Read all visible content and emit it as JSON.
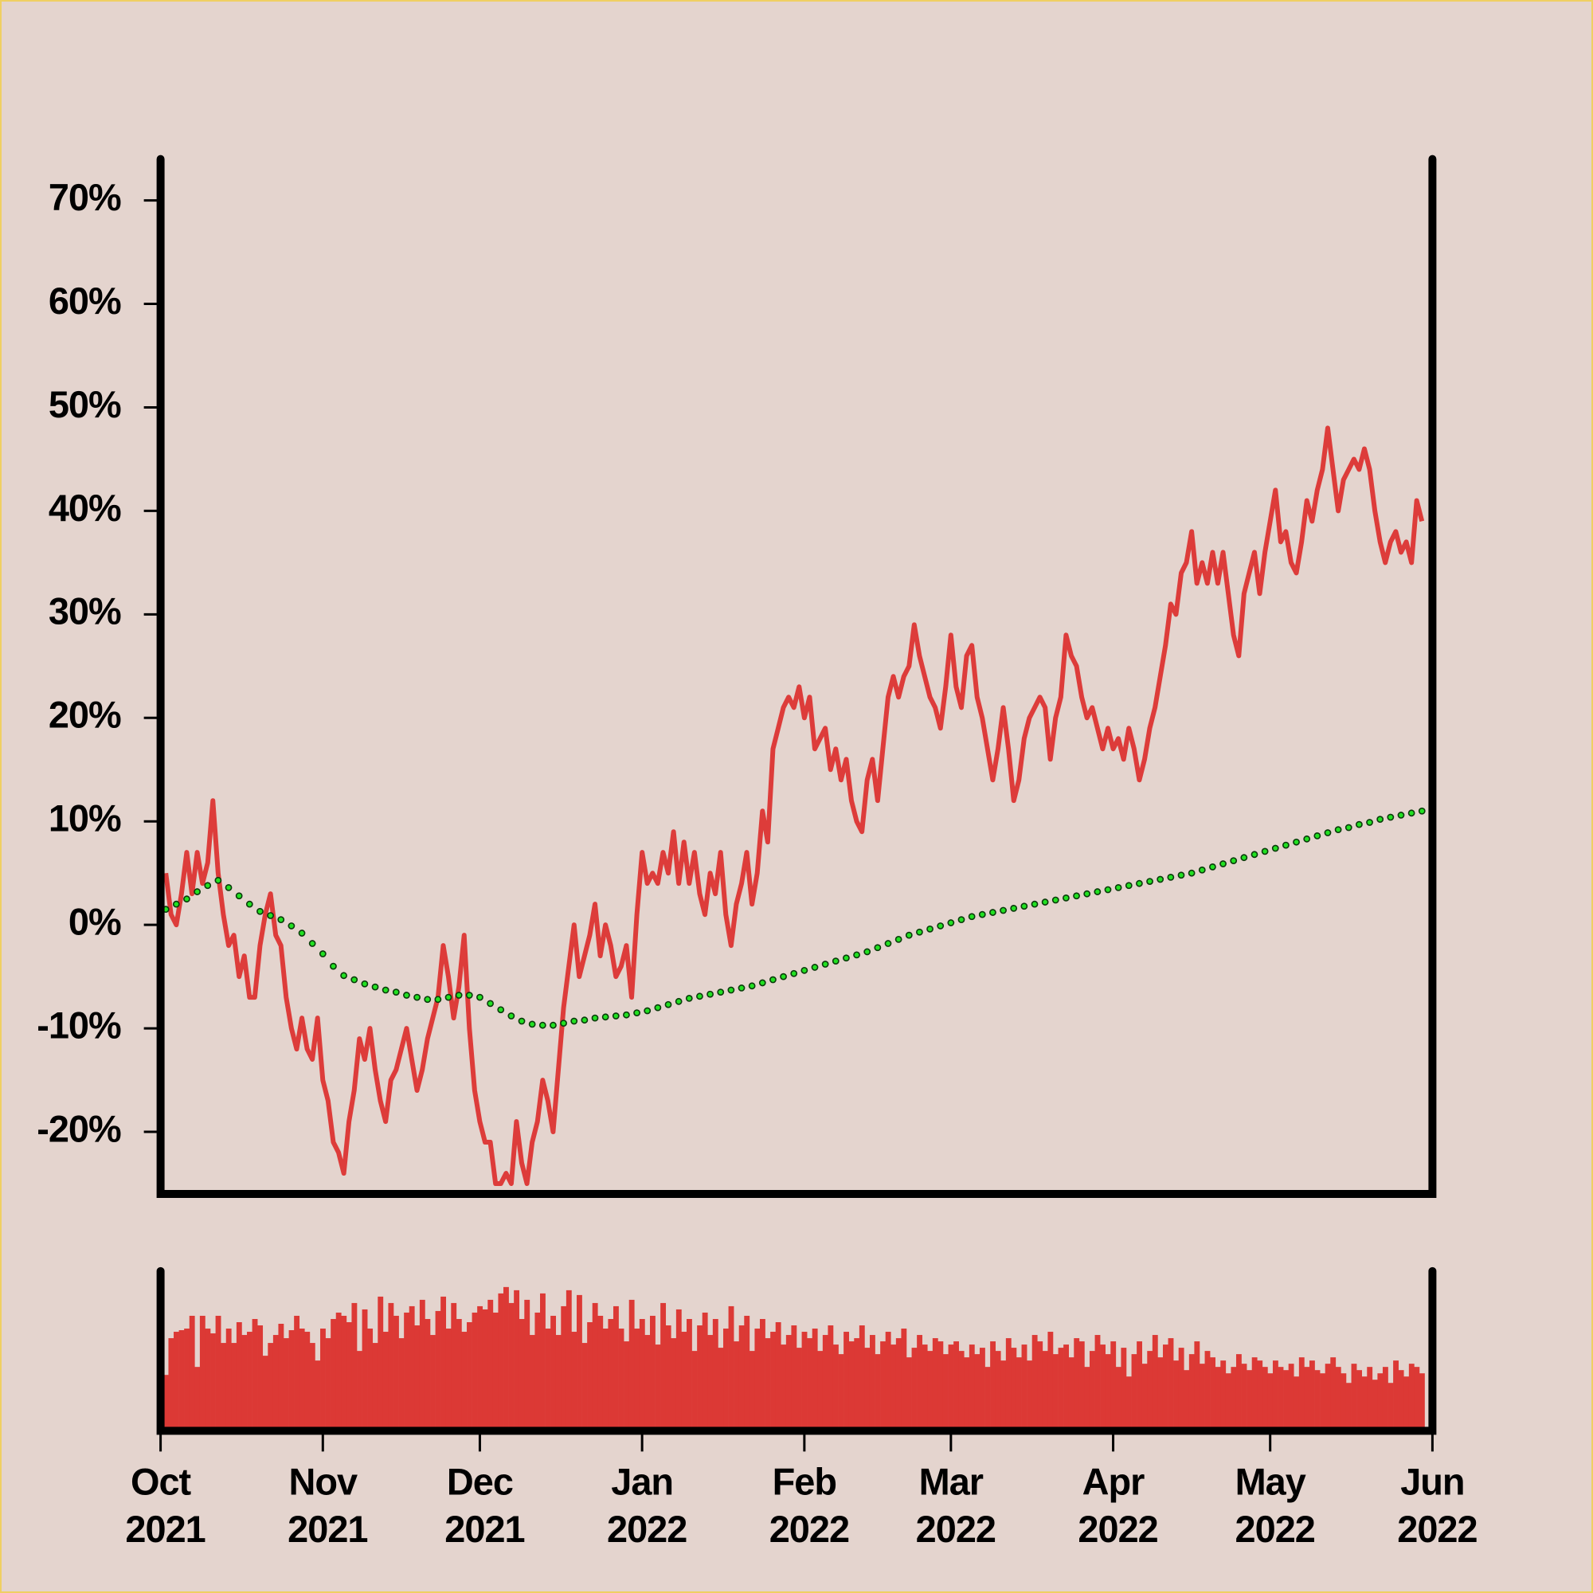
{
  "chart_data": [
    {
      "type": "line",
      "x": [
        1,
        2,
        3,
        4,
        5,
        6,
        7,
        8,
        9,
        10,
        11,
        12,
        13,
        14,
        15,
        16,
        17,
        18,
        19,
        20,
        21,
        22,
        23,
        24,
        25,
        26,
        27,
        28,
        29,
        30,
        31,
        32,
        33,
        34,
        35,
        36,
        37,
        38,
        39,
        40,
        41,
        42,
        43,
        44,
        45,
        46,
        47,
        48,
        49,
        50,
        51,
        52,
        53,
        54,
        55,
        56,
        57,
        58,
        59,
        60,
        61,
        62,
        63,
        64,
        65,
        66,
        67,
        68,
        69,
        70,
        71,
        72,
        73,
        74,
        75,
        76,
        77,
        78,
        79,
        80,
        81,
        82,
        83,
        84,
        85,
        86,
        87,
        88,
        89,
        90,
        91,
        92,
        93,
        94,
        95,
        96,
        97,
        98,
        99,
        100,
        101,
        102,
        103,
        104,
        105,
        106,
        107,
        108,
        109,
        110,
        111,
        112,
        113,
        114,
        115,
        116,
        117,
        118,
        119,
        120,
        121,
        122,
        123,
        124,
        125,
        126,
        127,
        128,
        129,
        130,
        131,
        132,
        133,
        134,
        135,
        136,
        137,
        138,
        139,
        140,
        141,
        142,
        143,
        144,
        145,
        146,
        147,
        148,
        149,
        150,
        151,
        152,
        153,
        154,
        155,
        156,
        157,
        158,
        159,
        160,
        161,
        162,
        163,
        164,
        165,
        166,
        167,
        168,
        169,
        170,
        171,
        172,
        173,
        174,
        175,
        176,
        177,
        178,
        179,
        180,
        181,
        182,
        183,
        184,
        185,
        186,
        187,
        188,
        189,
        190,
        191,
        192,
        193,
        194,
        195,
        196,
        197,
        198,
        199,
        200,
        201,
        202,
        203,
        204,
        205,
        206,
        207,
        208,
        209,
        210,
        211,
        212,
        213,
        214,
        215,
        216,
        217,
        218,
        219,
        220,
        221,
        222,
        223,
        224,
        225,
        226,
        227,
        228,
        229,
        230,
        231,
        232,
        233,
        234,
        235,
        236,
        237,
        238,
        239,
        240,
        241
      ],
      "xlim": [
        0,
        243
      ],
      "ylim": [
        -26,
        74
      ],
      "yticks": [
        {
          "value": -20,
          "label": "-20%"
        },
        {
          "value": -10,
          "label": "-10%"
        },
        {
          "value": 0,
          "label": "0%"
        },
        {
          "value": 10,
          "label": "10%"
        },
        {
          "value": 20,
          "label": "20%"
        },
        {
          "value": 30,
          "label": "30%"
        },
        {
          "value": 40,
          "label": "40%"
        },
        {
          "value": 50,
          "label": "50%"
        },
        {
          "value": 60,
          "label": "60%"
        },
        {
          "value": 70,
          "label": "70%"
        }
      ],
      "series": [
        {
          "color": "#dd3c3a",
          "values": [
            5,
            1,
            0,
            3,
            7,
            3,
            7,
            4,
            6,
            12,
            5,
            1,
            -2,
            -1,
            -5,
            -3,
            -7,
            -7,
            -2,
            1,
            3,
            -1,
            -2,
            -7,
            -10,
            -12,
            -9,
            -12,
            -13,
            -9,
            -15,
            -17,
            -21,
            -22,
            -24,
            -19,
            -16,
            -11,
            -13,
            -10,
            -14,
            -17,
            -19,
            -15,
            -14,
            -12,
            -10,
            -13,
            -16,
            -14,
            -11,
            -9,
            -7,
            -2,
            -5,
            -9,
            -6,
            -1,
            -10,
            -16,
            -19,
            -21,
            -21,
            -25,
            -25,
            -24,
            -25,
            -19,
            -23,
            -25,
            -21,
            -19,
            -15,
            -17,
            -20,
            -14,
            -8,
            -4,
            0,
            -5,
            -3,
            -1,
            2,
            -3,
            0,
            -2,
            -5,
            -4,
            -2,
            -7,
            1,
            7,
            4,
            5,
            4,
            7,
            5,
            9,
            4,
            8,
            4,
            7,
            3,
            1,
            5,
            3,
            7,
            1,
            -2,
            2,
            4,
            7,
            2,
            5,
            11,
            8,
            17,
            19,
            21,
            22,
            21,
            23,
            20,
            22,
            17,
            18,
            19,
            15,
            17,
            14,
            16,
            12,
            10,
            9,
            14,
            16,
            12,
            17,
            22,
            24,
            22,
            24,
            25,
            29,
            26,
            24,
            22,
            21,
            19,
            23,
            28,
            23,
            21,
            26,
            27,
            22,
            20,
            17,
            14,
            17,
            21,
            17,
            12,
            14,
            18,
            20,
            21,
            22,
            21,
            16,
            20,
            22,
            28,
            26,
            25,
            22,
            20,
            21,
            19,
            17,
            19,
            17,
            18,
            16,
            19,
            17,
            14,
            16,
            19,
            21,
            24,
            27,
            31,
            30,
            34,
            35,
            38,
            33,
            35,
            33,
            36,
            33,
            36,
            32,
            28,
            26,
            32,
            34,
            36,
            32,
            36,
            39,
            42,
            37,
            38,
            35,
            34,
            37,
            41,
            39,
            42,
            44,
            48,
            44,
            40,
            43,
            44,
            45,
            44,
            46,
            44,
            40,
            37,
            35,
            37,
            38,
            36,
            37,
            35,
            41,
            39
          ]
        },
        {
          "color": "#22e022",
          "x": [
            1,
            3,
            5,
            7,
            9,
            11,
            13,
            15,
            17,
            19,
            21,
            23,
            25,
            27,
            29,
            31,
            33,
            35,
            37,
            39,
            41,
            43,
            45,
            47,
            49,
            51,
            53,
            55,
            57,
            59,
            61,
            63,
            65,
            67,
            69,
            71,
            73,
            75,
            77,
            79,
            81,
            83,
            85,
            87,
            89,
            91,
            93,
            95,
            97,
            99,
            101,
            103,
            105,
            107,
            109,
            111,
            113,
            115,
            117,
            119,
            121,
            123,
            125,
            127,
            129,
            131,
            133,
            135,
            137,
            139,
            141,
            143,
            145,
            147,
            149,
            151,
            153,
            155,
            157,
            159,
            161,
            163,
            165,
            167,
            169,
            171,
            173,
            175,
            177,
            179,
            181,
            183,
            185,
            187,
            189,
            191,
            193,
            195,
            197,
            199,
            201,
            203,
            205,
            207,
            209,
            211,
            213,
            215,
            217,
            219,
            221,
            223,
            225,
            227,
            229,
            231,
            233,
            235,
            237,
            239,
            241
          ],
          "values": [
            1.5,
            2,
            2.5,
            3.2,
            3.8,
            4.3,
            3.6,
            2.8,
            2.0,
            1.3,
            0.9,
            0.5,
            -0.1,
            -0.8,
            -1.8,
            -2.8,
            -4,
            -4.9,
            -5.3,
            -5.7,
            -6.0,
            -6.3,
            -6.5,
            -6.8,
            -7.0,
            -7.2,
            -7.2,
            -7.0,
            -6.8,
            -6.8,
            -7.0,
            -7.6,
            -8.2,
            -8.8,
            -9.3,
            -9.6,
            -9.7,
            -9.7,
            -9.5,
            -9.3,
            -9.2,
            -9.0,
            -8.9,
            -8.8,
            -8.7,
            -8.5,
            -8.3,
            -8.0,
            -7.7,
            -7.4,
            -7.1,
            -6.9,
            -6.7,
            -6.5,
            -6.3,
            -6.1,
            -5.9,
            -5.6,
            -5.3,
            -5.0,
            -4.7,
            -4.4,
            -4.1,
            -3.8,
            -3.5,
            -3.2,
            -2.9,
            -2.6,
            -2.2,
            -1.8,
            -1.4,
            -1.0,
            -0.7,
            -0.4,
            -0.1,
            0.2,
            0.5,
            0.8,
            1.0,
            1.2,
            1.4,
            1.6,
            1.8,
            2.0,
            2.2,
            2.4,
            2.6,
            2.8,
            3.0,
            3.2,
            3.4,
            3.6,
            3.8,
            4.0,
            4.2,
            4.4,
            4.6,
            4.8,
            5.0,
            5.3,
            5.6,
            5.9,
            6.2,
            6.5,
            6.8,
            7.1,
            7.4,
            7.7,
            8.0,
            8.3,
            8.6,
            8.9,
            9.2,
            9.4,
            9.7,
            9.9,
            10.2,
            10.4,
            10.6,
            10.8,
            11.0
          ]
        }
      ]
    },
    {
      "type": "bar",
      "color": "#dc3935",
      "xlim": [
        0,
        243
      ],
      "ylim": [
        0,
        100
      ],
      "xticks": [
        {
          "value": 0,
          "label": "Oct 2021"
        },
        {
          "value": 31,
          "label": "Nov 2021"
        },
        {
          "value": 61,
          "label": "Dec 2021"
        },
        {
          "value": 92,
          "label": "Jan 2022"
        },
        {
          "value": 123,
          "label": "Feb 2022"
        },
        {
          "value": 151,
          "label": "Mar 2022"
        },
        {
          "value": 182,
          "label": "Apr 2022"
        },
        {
          "value": 212,
          "label": "May 2022"
        },
        {
          "value": 243,
          "label": "Jun 2022"
        }
      ],
      "values": [
        35,
        58,
        62,
        63,
        64,
        72,
        40,
        72,
        64,
        61,
        72,
        55,
        64,
        55,
        68,
        60,
        62,
        70,
        66,
        47,
        55,
        60,
        67,
        58,
        63,
        72,
        64,
        62,
        55,
        44,
        64,
        58,
        70,
        74,
        72,
        68,
        80,
        50,
        76,
        64,
        55,
        84,
        62,
        80,
        72,
        58,
        74,
        78,
        66,
        82,
        70,
        60,
        75,
        84,
        64,
        80,
        70,
        62,
        68,
        74,
        78,
        76,
        82,
        74,
        86,
        90,
        80,
        88,
        70,
        82,
        60,
        74,
        86,
        64,
        72,
        60,
        78,
        88,
        62,
        85,
        55,
        68,
        80,
        72,
        64,
        70,
        78,
        64,
        56,
        82,
        64,
        70,
        60,
        72,
        54,
        80,
        66,
        58,
        76,
        62,
        70,
        50,
        66,
        74,
        60,
        70,
        52,
        64,
        78,
        56,
        66,
        72,
        50,
        64,
        70,
        58,
        62,
        68,
        54,
        60,
        66,
        52,
        62,
        58,
        64,
        50,
        60,
        66,
        54,
        48,
        62,
        56,
        58,
        66,
        52,
        60,
        48,
        56,
        62,
        54,
        58,
        64,
        46,
        52,
        60,
        54,
        50,
        58,
        56,
        48,
        54,
        56,
        50,
        46,
        54,
        48,
        52,
        40,
        56,
        50,
        44,
        58,
        52,
        46,
        54,
        44,
        60,
        56,
        50,
        62,
        48,
        52,
        54,
        46,
        58,
        56,
        40,
        50,
        60,
        54,
        48,
        56,
        40,
        52,
        34,
        48,
        56,
        42,
        50,
        60,
        46,
        54,
        58,
        44,
        52,
        38,
        48,
        56,
        42,
        50,
        46,
        40,
        44,
        36,
        40,
        48,
        42,
        38,
        46,
        44,
        40,
        36,
        44,
        40,
        38,
        42,
        34,
        46,
        40,
        44,
        38,
        36,
        42,
        46,
        40,
        36,
        30,
        42,
        38,
        34,
        40,
        32,
        36,
        40,
        30,
        44,
        38,
        34,
        42,
        40,
        36
      ]
    }
  ]
}
